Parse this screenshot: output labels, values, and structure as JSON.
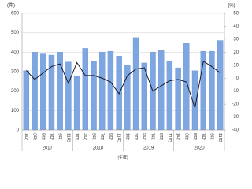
{
  "chart_data": {
    "type": "bar-line",
    "y_unit": "(件)",
    "y2_unit": "(%)",
    "x_unit": "(年度)",
    "categories": [
      "1月",
      "3月",
      "5月",
      "7月",
      "9月",
      "11月",
      "1月",
      "3月",
      "5月",
      "7月",
      "9月",
      "11月",
      "1月",
      "3月",
      "5月",
      "7月",
      "9月",
      "11月",
      "1月",
      "3月",
      "5月",
      "7月",
      "9月",
      "11月"
    ],
    "years": [
      "2017",
      "2018",
      "2019",
      "2020"
    ],
    "series": [
      {
        "type": "bar",
        "color": "#7ea6e0",
        "values": [
          305,
          400,
          395,
          385,
          400,
          350,
          275,
          420,
          355,
          400,
          405,
          380,
          335,
          475,
          345,
          400,
          410,
          355,
          320,
          445,
          305,
          405,
          405,
          460
        ]
      },
      {
        "type": "line",
        "axis": "y2",
        "color": "#1a1a2e",
        "values": [
          6,
          -1,
          4,
          9,
          11,
          -4,
          12,
          2,
          2,
          0,
          -3,
          -12,
          2,
          7,
          8,
          -10,
          -6,
          -2,
          -1,
          -3,
          -23,
          13,
          9,
          4
        ]
      }
    ],
    "ylim": [
      0,
      600
    ],
    "yticks": [
      0,
      100,
      200,
      300,
      400,
      500,
      600
    ],
    "y2lim": [
      -40,
      50
    ],
    "y2ticks": [
      -40,
      -30,
      -20,
      -10,
      0,
      10,
      20,
      30,
      40,
      50
    ],
    "grid": true
  }
}
